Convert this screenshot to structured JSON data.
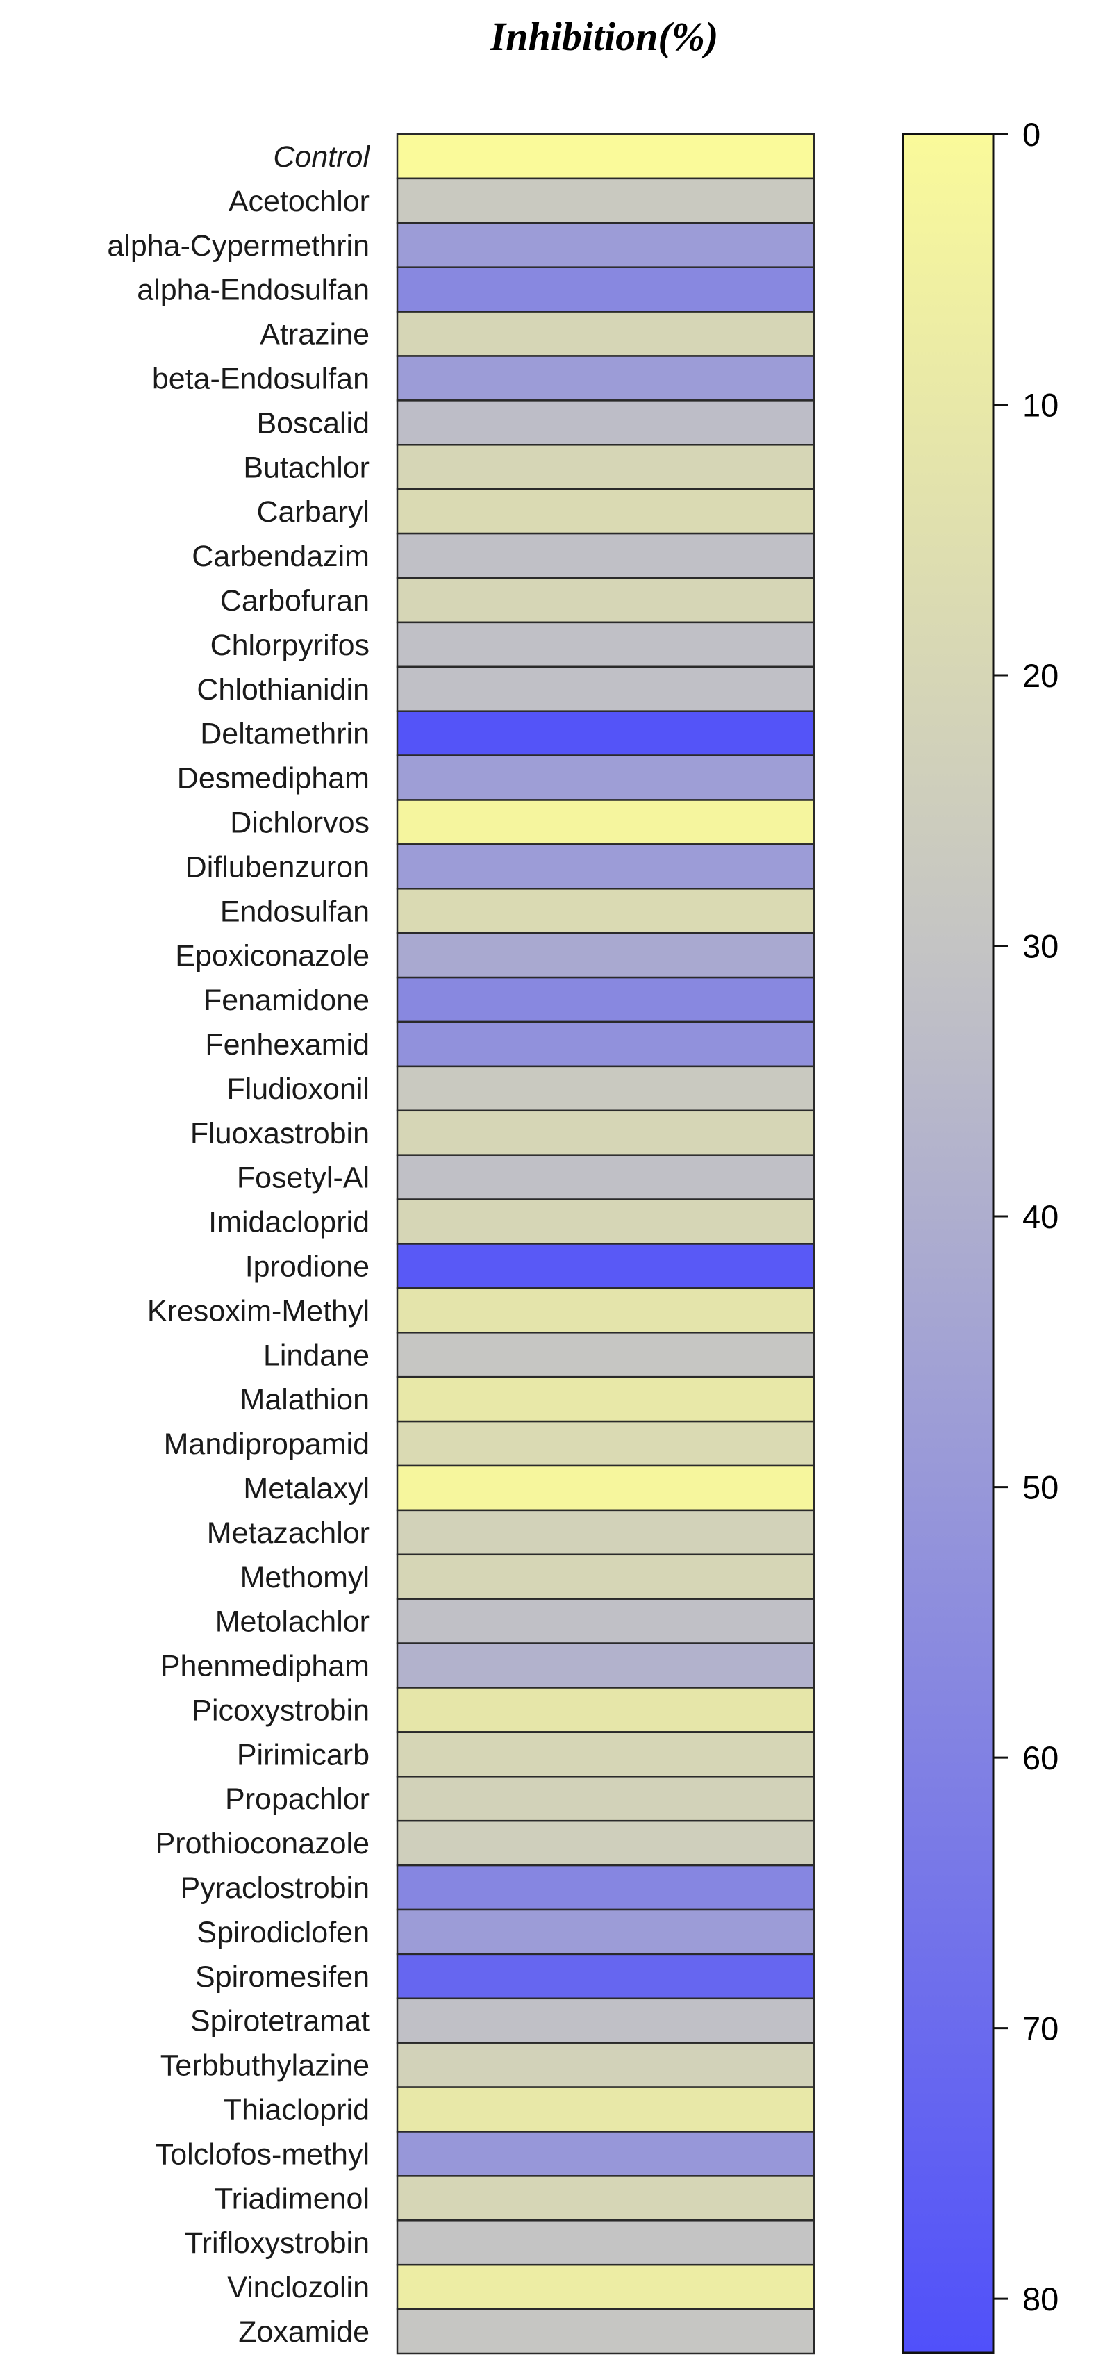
{
  "chart_data": {
    "type": "heatmap",
    "title": "Inhibition(%)",
    "colorbar": {
      "label": "",
      "range": [
        0,
        82
      ],
      "ticks": [
        0,
        10,
        20,
        30,
        40,
        50,
        60,
        70,
        80
      ],
      "tick_labels": [
        "0",
        "10",
        "20",
        "30",
        "40",
        "50",
        "60",
        "70",
        "80"
      ],
      "color_low": "#fafa9a",
      "color_mid": "#c4c4c4",
      "color_high": "#5050fa",
      "mid_value": 30
    },
    "rows": [
      {
        "label": "Control",
        "value": 0,
        "italic": true
      },
      {
        "label": "Acetochlor",
        "value": 27
      },
      {
        "label": "alpha-Cypermethrin",
        "value": 48
      },
      {
        "label": "alpha-Endosulfan",
        "value": 57
      },
      {
        "label": "Atrazine",
        "value": 20
      },
      {
        "label": "beta-Endosulfan",
        "value": 48
      },
      {
        "label": "Boscalid",
        "value": 33
      },
      {
        "label": "Butachlor",
        "value": 20
      },
      {
        "label": "Carbaryl",
        "value": 18
      },
      {
        "label": "Carbendazim",
        "value": 32
      },
      {
        "label": "Carbofuran",
        "value": 20
      },
      {
        "label": "Chlorpyrifos",
        "value": 32
      },
      {
        "label": "Chlothianidin",
        "value": 32
      },
      {
        "label": "Deltamethrin",
        "value": 80
      },
      {
        "label": "Desmedipham",
        "value": 47
      },
      {
        "label": "Dichlorvos",
        "value": 3
      },
      {
        "label": "Diflubenzuron",
        "value": 48
      },
      {
        "label": "Endosulfan",
        "value": 18
      },
      {
        "label": "Epoxiconazole",
        "value": 42
      },
      {
        "label": "Fenamidone",
        "value": 57
      },
      {
        "label": "Fenhexamid",
        "value": 53
      },
      {
        "label": "Fludioxonil",
        "value": 27
      },
      {
        "label": "Fluoxastrobin",
        "value": 20
      },
      {
        "label": "Fosetyl-Al",
        "value": 32
      },
      {
        "label": "Imidacloprid",
        "value": 20
      },
      {
        "label": "Iprodione",
        "value": 78
      },
      {
        "label": "Kresoxim-Methyl",
        "value": 12
      },
      {
        "label": "Lindane",
        "value": 29
      },
      {
        "label": "Malathion",
        "value": 10
      },
      {
        "label": "Mandipropamid",
        "value": 18
      },
      {
        "label": "Metalaxyl",
        "value": 2
      },
      {
        "label": "Metazachlor",
        "value": 22
      },
      {
        "label": "Methomyl",
        "value": 20
      },
      {
        "label": "Metolachlor",
        "value": 32
      },
      {
        "label": "Phenmedipham",
        "value": 38
      },
      {
        "label": "Picoxystrobin",
        "value": 11
      },
      {
        "label": "Pirimicarb",
        "value": 20
      },
      {
        "label": "Propachlor",
        "value": 22
      },
      {
        "label": "Prothioconazole",
        "value": 24
      },
      {
        "label": "Pyraclostrobin",
        "value": 58
      },
      {
        "label": "Spirodiclofen",
        "value": 48
      },
      {
        "label": "Spiromesifen",
        "value": 72
      },
      {
        "label": "Spirotetramat",
        "value": 32
      },
      {
        "label": "Terbbuthylazine",
        "value": 22
      },
      {
        "label": "Thiacloprid",
        "value": 10
      },
      {
        "label": "Tolclofos-methyl",
        "value": 50
      },
      {
        "label": "Triadimenol",
        "value": 20
      },
      {
        "label": "Trifloxystrobin",
        "value": 30
      },
      {
        "label": "Vinclozolin",
        "value": 7
      },
      {
        "label": "Zoxamide",
        "value": 29
      }
    ]
  }
}
